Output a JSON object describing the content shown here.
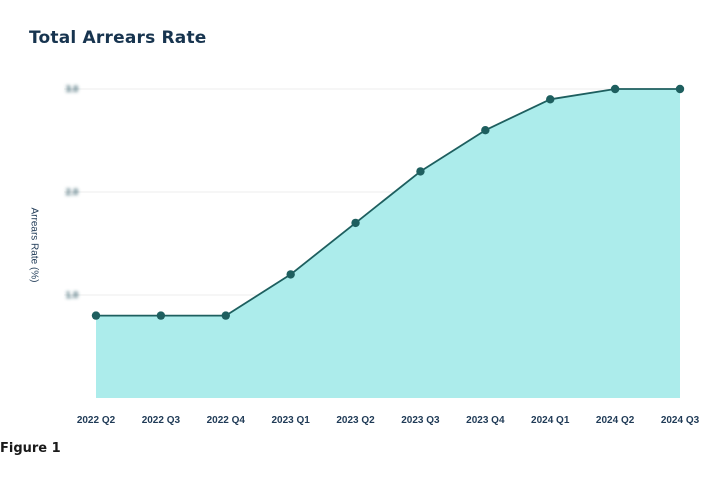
{
  "figure_caption": "Figure 1",
  "chart_data": {
    "type": "area",
    "title": "Total Arrears Rate",
    "xlabel": "",
    "ylabel": "Arrears Rate (%)",
    "categories": [
      "2022 Q2",
      "2022 Q3",
      "2022 Q4",
      "2023 Q1",
      "2023 Q2",
      "2023 Q3",
      "2023 Q4",
      "2024 Q1",
      "2024 Q2",
      "2024 Q3"
    ],
    "values": [
      0.8,
      0.8,
      0.8,
      1.2,
      1.7,
      2.2,
      2.6,
      2.9,
      3.0,
      3.0
    ],
    "ylim": [
      0,
      3.0
    ],
    "yticks": [
      1.0,
      2.0,
      3.0
    ],
    "ytick_labels_visible": false,
    "grid": true,
    "colors": {
      "fill": "#aceceb",
      "line": "#1e5f5f",
      "marker": "#1e5f5f",
      "grid": "#eeeeee"
    }
  }
}
